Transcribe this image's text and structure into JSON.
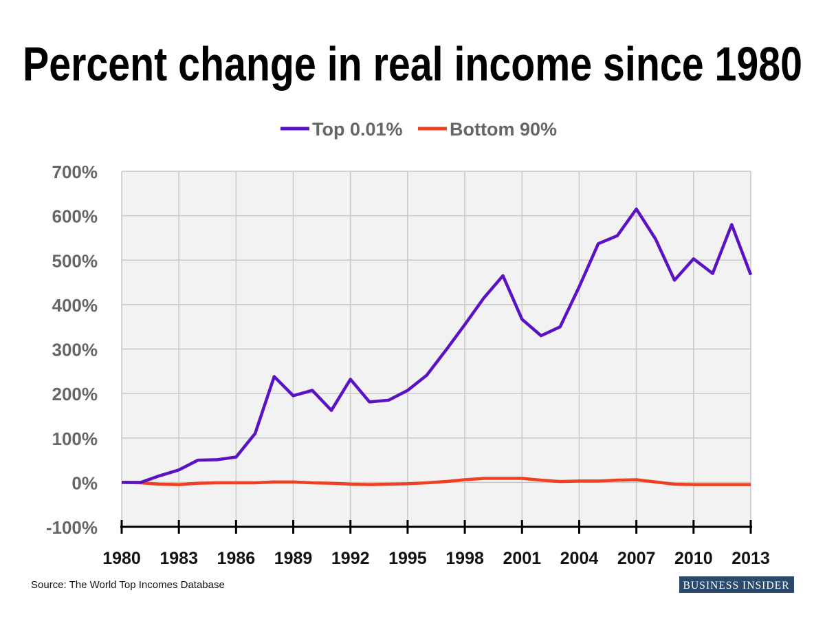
{
  "chart_data": {
    "type": "line",
    "title": "Percent change in real income since 1980",
    "xlabel": "",
    "ylabel": "",
    "x": [
      1980,
      1981,
      1982,
      1983,
      1984,
      1985,
      1986,
      1987,
      1988,
      1989,
      1990,
      1991,
      1992,
      1993,
      1994,
      1995,
      1996,
      1997,
      1998,
      1999,
      2000,
      2001,
      2002,
      2003,
      2004,
      2005,
      2006,
      2007,
      2008,
      2009,
      2010,
      2011,
      2012,
      2013
    ],
    "series": [
      {
        "name": "Top 0.01%",
        "color": "#5b12c4",
        "values": [
          0,
          0,
          15,
          28,
          50,
          51,
          57,
          110,
          238,
          195,
          207,
          162,
          232,
          181,
          185,
          207,
          241,
          297,
          355,
          415,
          465,
          367,
          330,
          350,
          440,
          537,
          555,
          615,
          548,
          455,
          503,
          470,
          580,
          467
        ]
      },
      {
        "name": "Bottom 90%",
        "color": "#ee4123",
        "values": [
          0,
          -1,
          -4,
          -5,
          -2,
          -1,
          -1,
          -1,
          1,
          1,
          -1,
          -2,
          -4,
          -5,
          -4,
          -3,
          -1,
          2,
          6,
          9,
          9,
          9,
          5,
          2,
          3,
          3,
          5,
          6,
          1,
          -4,
          -5,
          -5,
          -5,
          -5
        ]
      }
    ],
    "xlim": [
      1980,
      2013
    ],
    "ylim": [
      -100,
      700
    ],
    "yticks": [
      -100,
      0,
      100,
      200,
      300,
      400,
      500,
      600,
      700
    ],
    "ytick_labels": [
      "-100%",
      "0%",
      "100%",
      "200%",
      "300%",
      "400%",
      "500%",
      "600%",
      "700%"
    ],
    "xticks": [
      1980,
      1983,
      1986,
      1989,
      1992,
      1995,
      1998,
      2001,
      2004,
      2007,
      2010,
      2013
    ],
    "xtick_labels": [
      "1980",
      "1983",
      "1986",
      "1989",
      "1992",
      "1995",
      "1998",
      "2001",
      "2004",
      "2007",
      "2010",
      "2013"
    ],
    "grid": true,
    "legend_position": "top-center",
    "plot_background": "#f2f2f2"
  },
  "source": "Source: The World Top Incomes Database",
  "logo_text": "BUSINESS INSIDER",
  "logo_color": "#2b4a6b"
}
